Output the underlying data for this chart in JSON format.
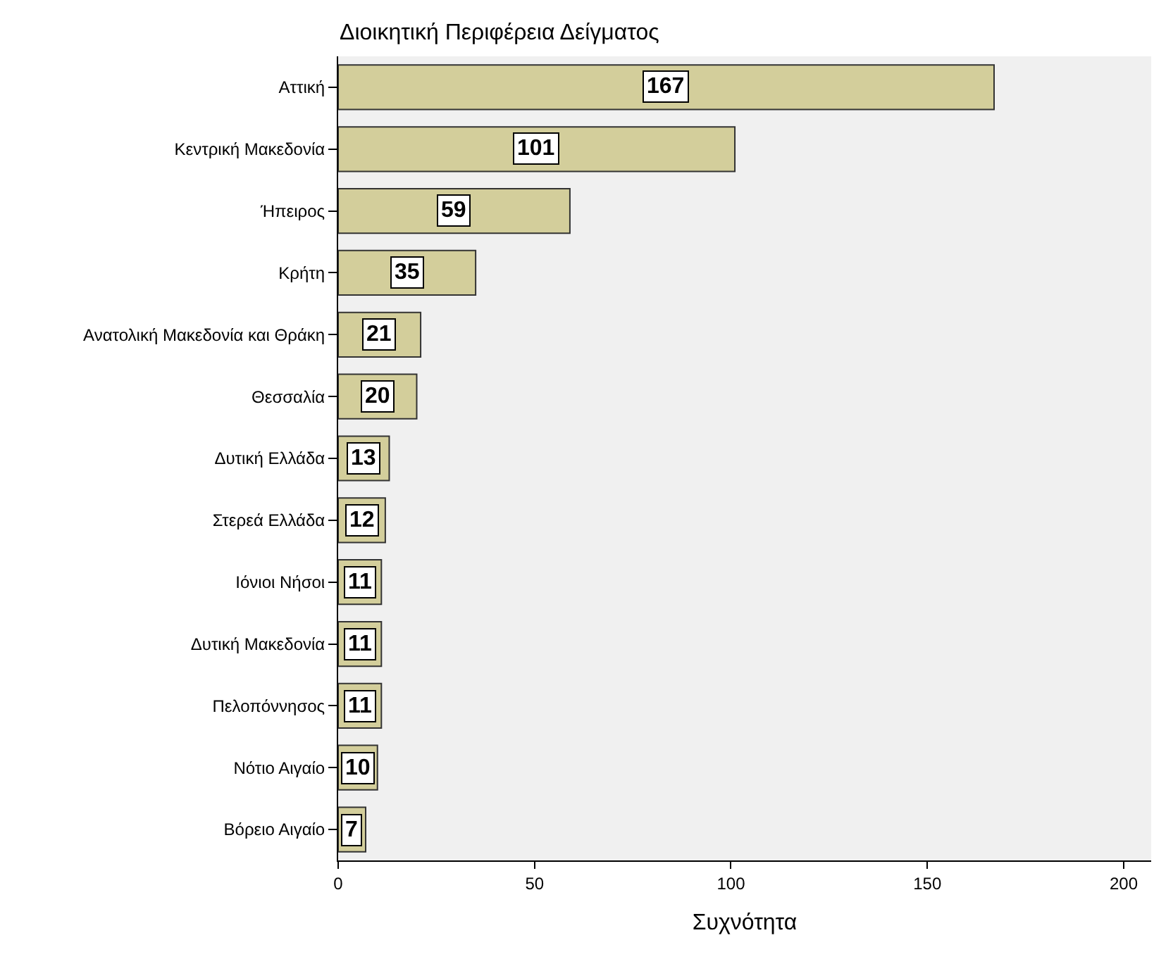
{
  "chart_data": {
    "type": "bar",
    "orientation": "horizontal",
    "title": "Διοικητική Περιφέρεια Δείγματος",
    "xlabel": "Συχνότητα",
    "categories": [
      "Αττική",
      "Κεντρική Μακεδονία",
      "Ήπειρος",
      "Κρήτη",
      "Ανατολική Μακεδονία και Θράκη",
      "Θεσσαλία",
      "Δυτική Ελλάδα",
      "Στερεά Ελλάδα",
      "Ιόνιοι Νήσοι",
      "Δυτική Μακεδονία",
      "Πελοπόννησος",
      "Νότιο Αιγαίο",
      "Βόρειο Αιγαίο"
    ],
    "values": [
      167,
      101,
      59,
      35,
      21,
      20,
      13,
      12,
      11,
      11,
      11,
      10,
      7
    ],
    "color": "#d3ce9b",
    "xlim": [
      0,
      207
    ],
    "xticks": [
      0,
      50,
      100,
      150,
      200
    ],
    "data_labels": true,
    "grid": false,
    "legend": false
  }
}
